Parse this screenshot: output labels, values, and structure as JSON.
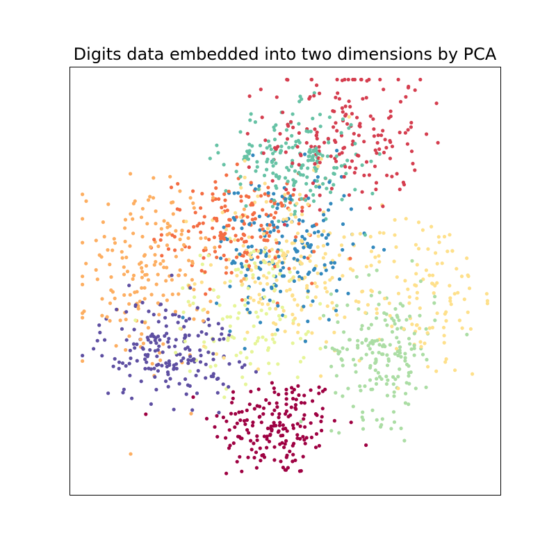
{
  "chart_data": {
    "type": "scatter",
    "title": "Digits data embedded into two dimensions by PCA",
    "xlabel": "",
    "ylabel": "",
    "xlim": [
      0,
      1
    ],
    "ylim": [
      0,
      1
    ],
    "ticks": "none",
    "grid": false,
    "legend": "none",
    "point_radius_note": "small filled circles",
    "series": [
      {
        "class": 0,
        "color": "#9e0142",
        "center": [
          0.48,
          0.16
        ],
        "spread": [
          0.075,
          0.06
        ],
        "count": 180
      },
      {
        "class": 1,
        "color": "#d53e4f",
        "center": [
          0.64,
          0.84
        ],
        "spread": [
          0.09,
          0.09
        ],
        "count": 180
      },
      {
        "class": 2,
        "color": "#f46d43",
        "center": [
          0.4,
          0.62
        ],
        "spread": [
          0.09,
          0.06
        ],
        "count": 180
      },
      {
        "class": 3,
        "color": "#fdae61",
        "center": [
          0.18,
          0.52
        ],
        "spread": [
          0.075,
          0.11
        ],
        "count": 180
      },
      {
        "class": 4,
        "color": "#fee08b",
        "center": [
          0.5,
          0.54
        ],
        "spread": [
          0.09,
          0.1
        ],
        "count": 180
      },
      {
        "class": 5,
        "color": "#fee08b",
        "center": [
          0.82,
          0.47
        ],
        "spread": [
          0.08,
          0.1
        ],
        "count": 120
      },
      {
        "class": 6,
        "color": "#e6f598",
        "center": [
          0.42,
          0.42
        ],
        "spread": [
          0.1,
          0.09
        ],
        "count": 120
      },
      {
        "class": 7,
        "color": "#abdda4",
        "center": [
          0.73,
          0.34
        ],
        "spread": [
          0.06,
          0.08
        ],
        "count": 180
      },
      {
        "class": 8,
        "color": "#66c2a5",
        "center": [
          0.52,
          0.78
        ],
        "spread": [
          0.08,
          0.06
        ],
        "count": 180
      },
      {
        "class": 9,
        "color": "#3288bd",
        "center": [
          0.5,
          0.58
        ],
        "spread": [
          0.08,
          0.09
        ],
        "count": 180
      },
      {
        "class": 10,
        "color": "#5e4fa2",
        "center": [
          0.23,
          0.34
        ],
        "spread": [
          0.08,
          0.06
        ],
        "count": 180
      }
    ]
  }
}
